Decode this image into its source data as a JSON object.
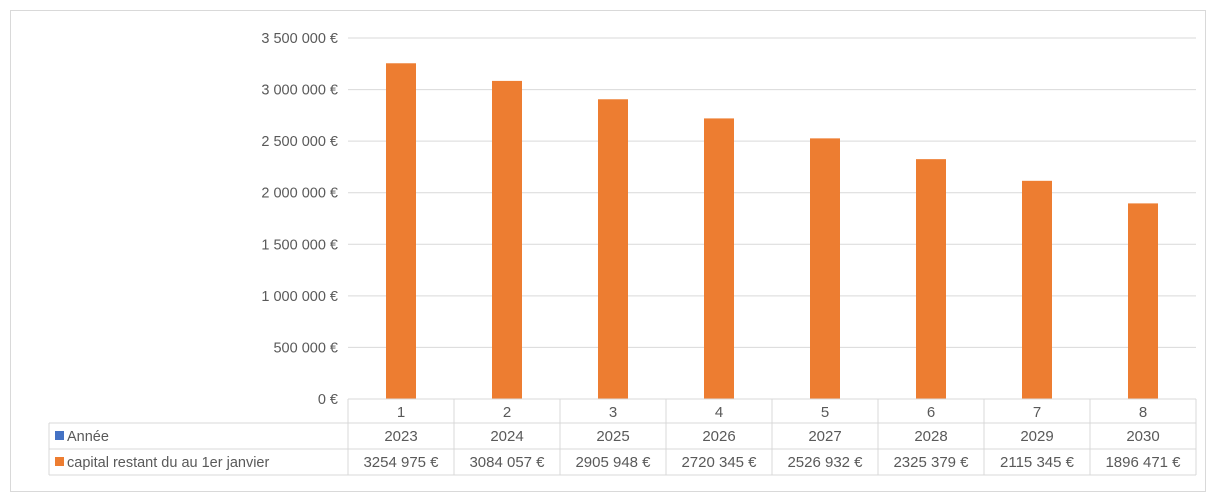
{
  "chart_data": {
    "type": "bar",
    "categories": [
      "1",
      "2",
      "3",
      "4",
      "5",
      "6",
      "7",
      "8"
    ],
    "ylim": [
      0,
      3500000
    ],
    "y_ticks": [
      0,
      500000,
      1000000,
      1500000,
      2000000,
      2500000,
      3000000,
      3500000
    ],
    "y_tick_labels": [
      "0 €",
      "500 000 €",
      "1 000 000 €",
      "1 500 000 €",
      "2 000 000 €",
      "2 500 000 €",
      "3 000 000 €",
      "3 500 000 €"
    ],
    "grid": true,
    "series": [
      {
        "name": "Année",
        "color": "#4472c4",
        "values": [
          2023,
          2024,
          2025,
          2026,
          2027,
          2028,
          2029,
          2030
        ],
        "labels": [
          "2023",
          "2024",
          "2025",
          "2026",
          "2027",
          "2028",
          "2029",
          "2030"
        ]
      },
      {
        "name": "capital restant du au 1er janvier",
        "color": "#ed7d31",
        "values": [
          3254975,
          3084057,
          2905948,
          2720345,
          2526932,
          2325379,
          2115345,
          1896471
        ],
        "labels": [
          "3254 975 €",
          "3084 057 €",
          "2905 948 €",
          "2720 345 €",
          "2526 932 €",
          "2325 379 €",
          "2115 345 €",
          "1896 471 €"
        ]
      }
    ],
    "legend": "data-table"
  }
}
